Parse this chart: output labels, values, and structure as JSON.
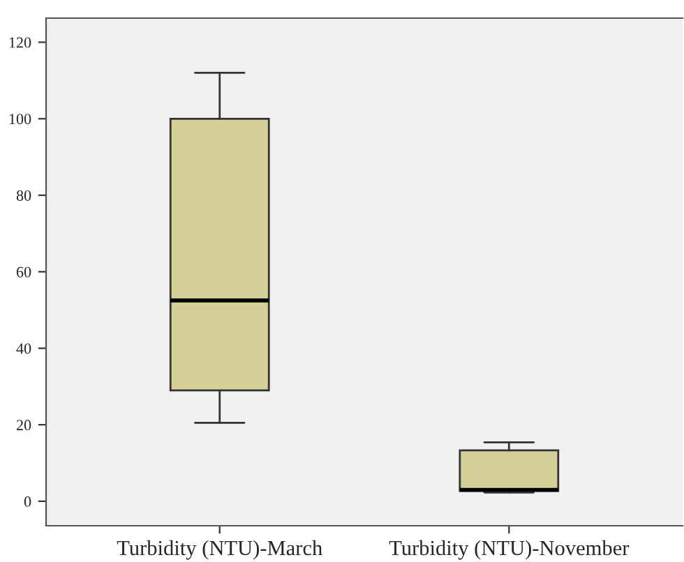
{
  "chart_data": {
    "type": "box",
    "categories": [
      "Turbidity (NTU)-March",
      "Turbidity (NTU)-November"
    ],
    "boxes": [
      {
        "low": 20.5,
        "q1": 29,
        "median": 52.5,
        "q3": 100,
        "high": 112
      },
      {
        "low": 2.3,
        "q1": 2.7,
        "median": 3.0,
        "q3": 13.3,
        "high": 15.4
      }
    ],
    "color": "#d5cf98",
    "ylim": [
      -6.4,
      126.3
    ],
    "yticks": [
      0,
      20,
      40,
      60,
      80,
      100,
      120
    ],
    "grid": false
  }
}
